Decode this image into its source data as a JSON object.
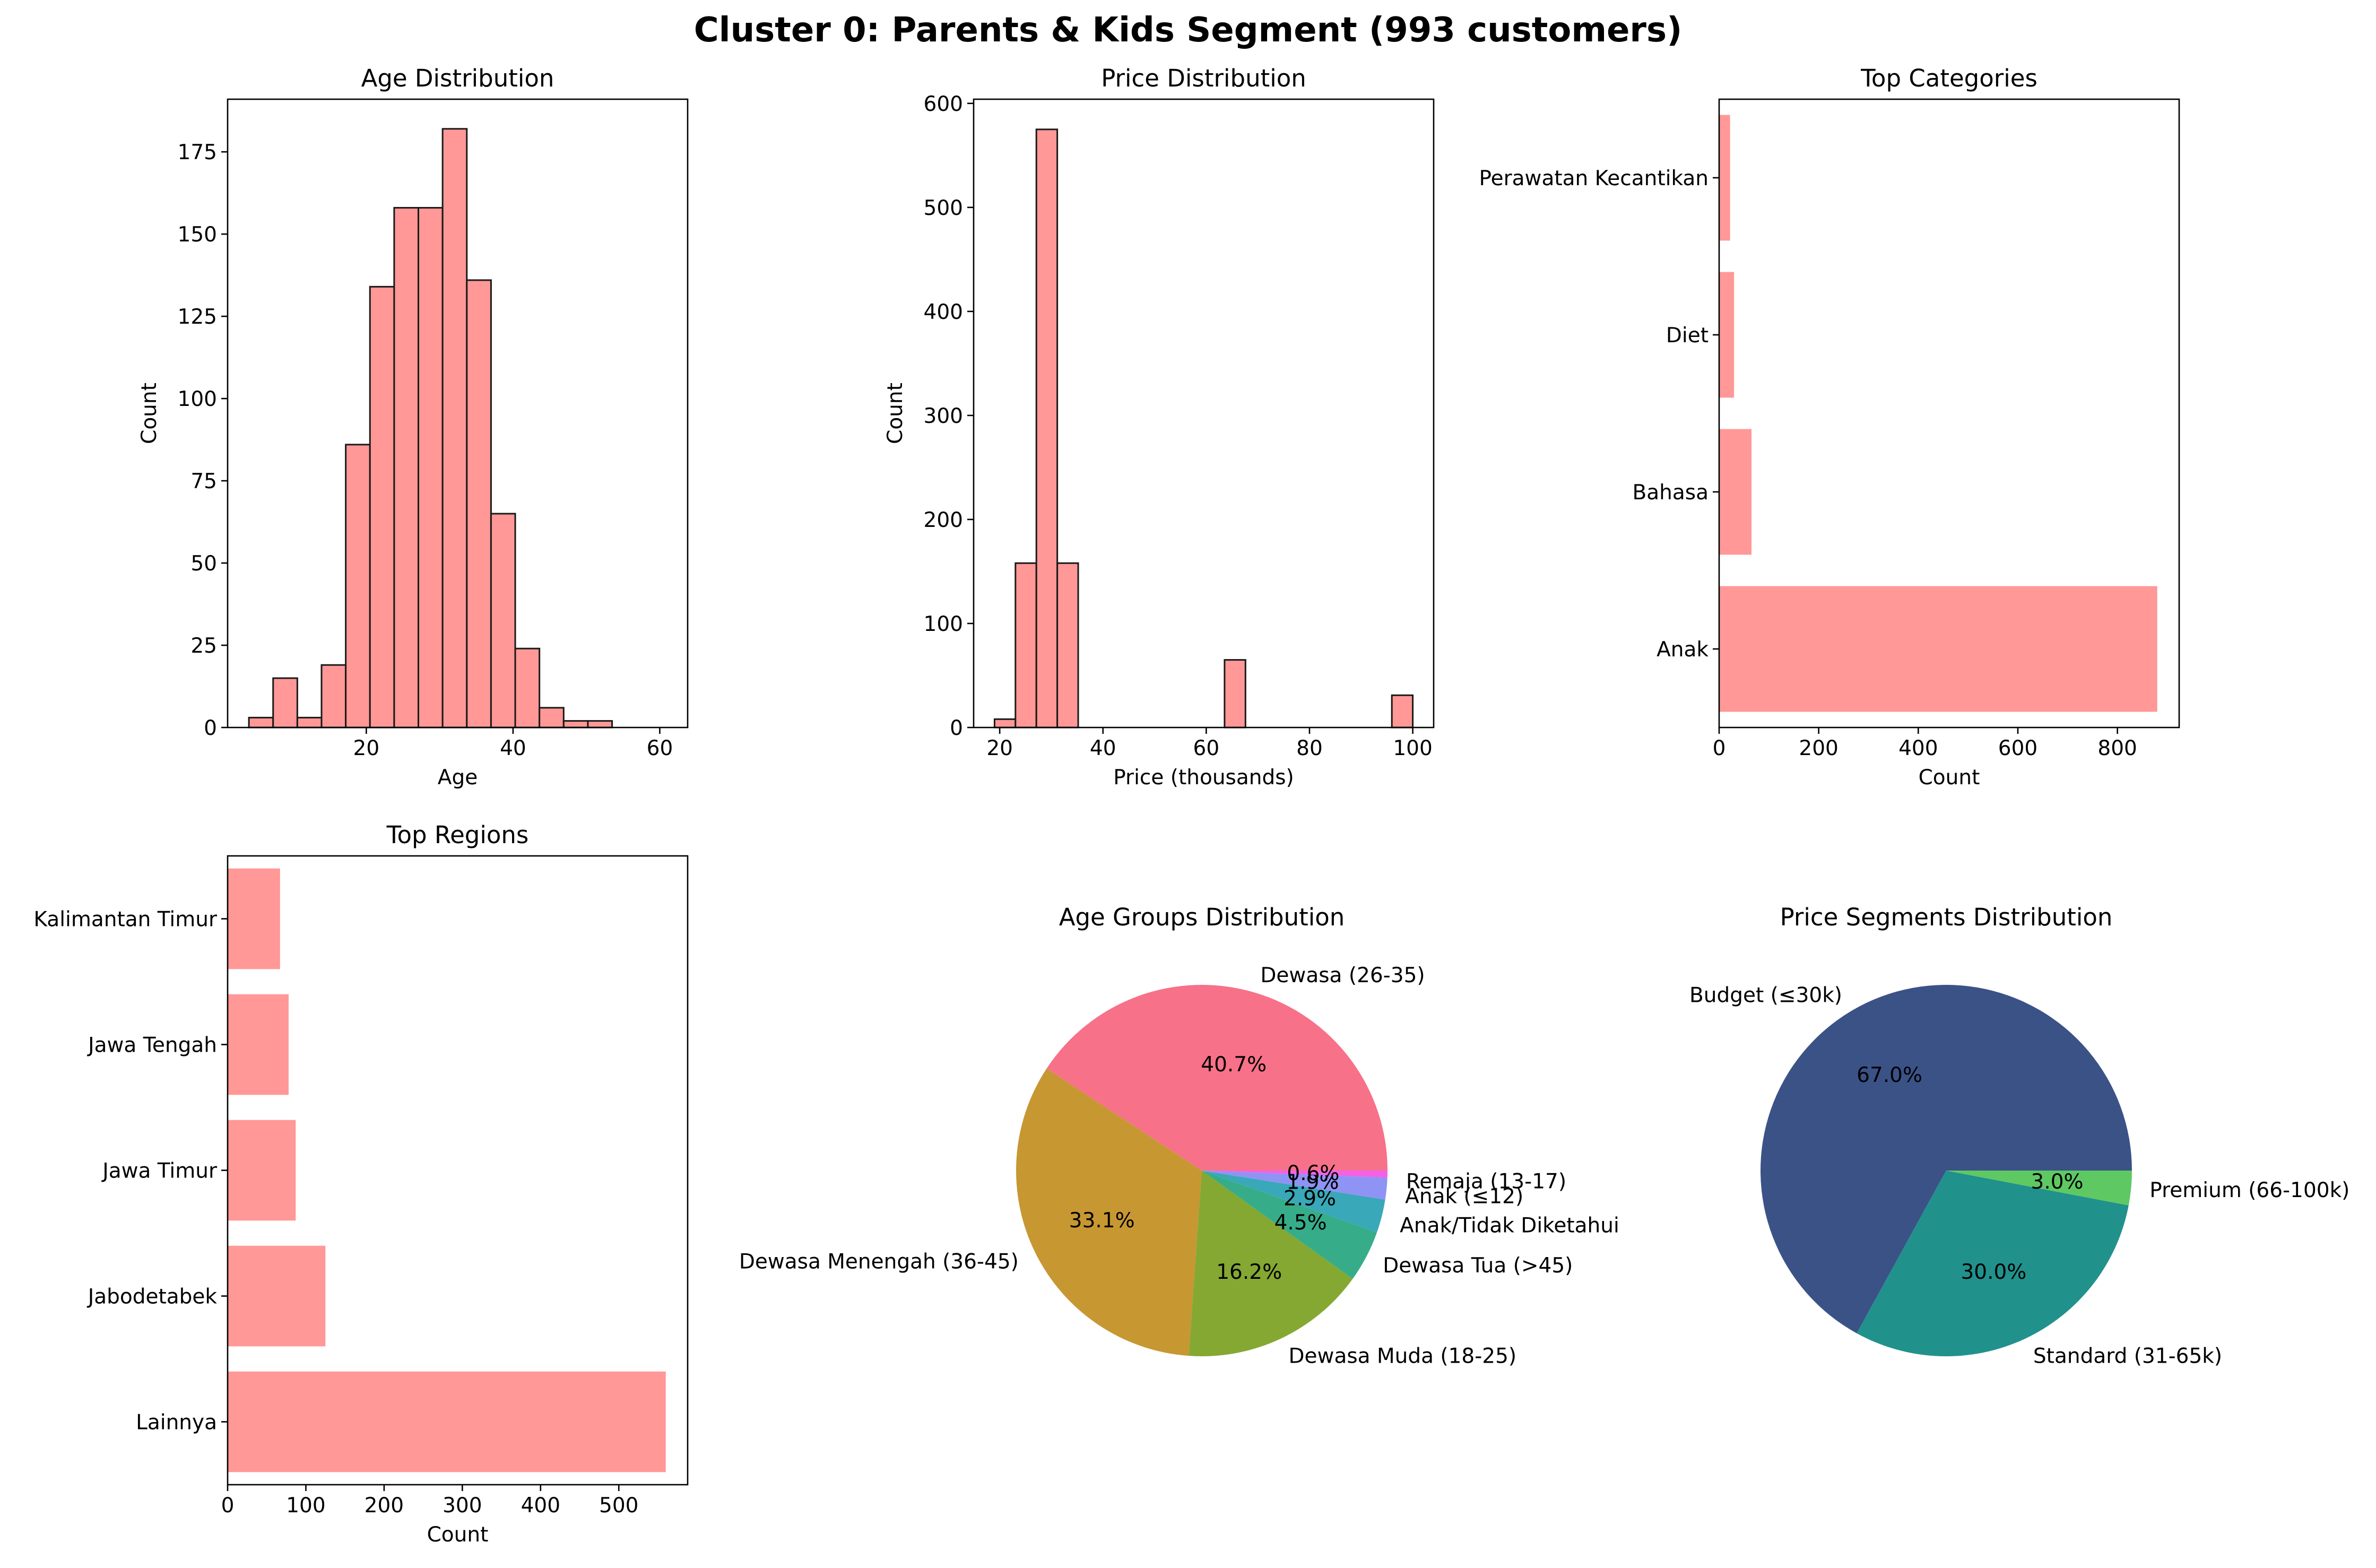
{
  "figure_title": "Cluster 0: Parents & Kids Segment (993 customers)",
  "colors": {
    "bar": "#ff9896",
    "edge": "#1a1a1a"
  },
  "chart_data": [
    {
      "type": "bar",
      "title": "Age Distribution",
      "xlabel": "Age",
      "ylabel": "Count",
      "bin_width": 3.3,
      "bin_starts": [
        4.0,
        7.3,
        10.6,
        13.9,
        17.2,
        20.5,
        23.8,
        27.1,
        30.4,
        33.7,
        37.0,
        40.3,
        43.6,
        46.9,
        50.2,
        53.5,
        56.8
      ],
      "values": [
        3,
        15,
        3,
        19,
        86,
        134,
        158,
        158,
        182,
        136,
        65,
        24,
        6,
        2,
        2,
        0,
        0
      ],
      "xlim": [
        1.1,
        63.8
      ],
      "ylim": [
        0,
        191
      ],
      "xticks": [
        20,
        40,
        60
      ],
      "yticks": [
        0,
        25,
        50,
        75,
        100,
        125,
        150,
        175
      ]
    },
    {
      "type": "bar",
      "title": "Price Distribution",
      "xlabel": "Price (thousands)",
      "ylabel": "Count",
      "bin_width": 4.05,
      "bin_starts": [
        19.0,
        23.05,
        27.1,
        31.15,
        35.2,
        39.25,
        43.3,
        47.35,
        51.4,
        55.45,
        59.5,
        63.55,
        67.6,
        71.65,
        75.7,
        79.75,
        83.8,
        87.85,
        91.9,
        95.95
      ],
      "values": [
        8,
        158,
        575,
        158,
        0,
        0,
        0,
        0,
        0,
        0,
        0,
        65,
        0,
        0,
        0,
        0,
        0,
        0,
        0,
        31
      ],
      "xlim": [
        14.95,
        104.05
      ],
      "ylim": [
        0,
        604
      ],
      "xticks": [
        20,
        40,
        60,
        80,
        100
      ],
      "yticks": [
        0,
        100,
        200,
        300,
        400,
        500,
        600
      ]
    },
    {
      "type": "bar",
      "orientation": "horizontal",
      "title": "Top Categories",
      "xlabel": "Count",
      "categories": [
        "Anak",
        "Bahasa",
        "Diet",
        "Perawatan Kecantikan"
      ],
      "values": [
        880,
        65,
        30,
        22
      ],
      "xlim": [
        0,
        924
      ],
      "xticks": [
        0,
        200,
        400,
        600,
        800
      ]
    },
    {
      "type": "bar",
      "orientation": "horizontal",
      "title": "Top Regions",
      "xlabel": "Count",
      "categories": [
        "Lainnya",
        "Jabodetabek",
        "Jawa Timur",
        "Jawa Tengah",
        "Kalimantan Timur"
      ],
      "values": [
        560,
        125,
        87,
        78,
        67
      ],
      "xlim": [
        0,
        588
      ],
      "xticks": [
        0,
        100,
        200,
        300,
        400,
        500
      ]
    },
    {
      "type": "pie",
      "title": "Age Groups Distribution",
      "labels": [
        "Dewasa (26-35)",
        "Dewasa Menengah (36-45)",
        "Dewasa Muda (18-25)",
        "Dewasa Tua (>45)",
        "Anak/Tidak Diketahui",
        "Anak (≤12)",
        "Remaja (13-17)"
      ],
      "values": [
        40.7,
        33.1,
        16.2,
        4.5,
        2.9,
        1.9,
        0.6
      ],
      "pct_labels": [
        "40.7%",
        "33.1%",
        "16.2%",
        "4.5%",
        "2.9%",
        "1.9%",
        "0.6%"
      ],
      "colors": [
        "#f77189",
        "#c79732",
        "#85a832",
        "#36ad88",
        "#39a8b8",
        "#8e93f4",
        "#f261e6"
      ]
    },
    {
      "type": "pie",
      "title": "Price Segments Distribution",
      "labels": [
        "Budget (≤30k)",
        "Standard (31-65k)",
        "Premium (66-100k)"
      ],
      "values": [
        67.0,
        30.0,
        3.0
      ],
      "pct_labels": [
        "67.0%",
        "30.0%",
        "3.0%"
      ],
      "colors": [
        "#3b5287",
        "#21918c",
        "#5ec962"
      ]
    }
  ]
}
